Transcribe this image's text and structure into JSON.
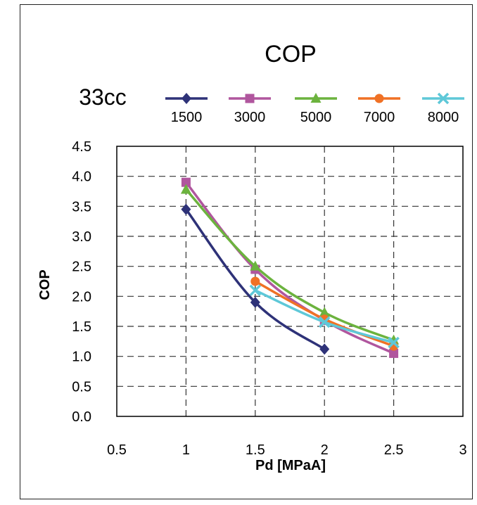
{
  "chart_data": {
    "type": "line",
    "title": "COP",
    "subtitle": "33cc",
    "xlabel": "Pd [MPaA]",
    "ylabel": "COP",
    "xlim": [
      0.5,
      3
    ],
    "ylim": [
      0,
      4.5
    ],
    "x_ticks": [
      "0.5",
      "1",
      "1.5",
      "2",
      "2.5",
      "3"
    ],
    "y_ticks": [
      "0.0",
      "0.5",
      "1.0",
      "1.5",
      "2.0",
      "2.5",
      "3.0",
      "3.5",
      "4.0",
      "4.5"
    ],
    "grid": true,
    "legend_position": "top",
    "series": [
      {
        "name": "1500",
        "color": "#2e3278",
        "marker": "diamond",
        "x": [
          1,
          1.5,
          2
        ],
        "y": [
          3.45,
          1.9,
          1.12
        ]
      },
      {
        "name": "3000",
        "color": "#b0569e",
        "marker": "square",
        "x": [
          1,
          1.5,
          2,
          2.5
        ],
        "y": [
          3.9,
          2.45,
          1.6,
          1.05
        ]
      },
      {
        "name": "5000",
        "color": "#6cb33e",
        "marker": "triangle",
        "x": [
          1,
          1.5,
          2,
          2.5
        ],
        "y": [
          3.78,
          2.5,
          1.73,
          1.27
        ]
      },
      {
        "name": "7000",
        "color": "#f07125",
        "marker": "circle",
        "x": [
          1.5,
          2,
          2.5
        ],
        "y": [
          2.25,
          1.62,
          1.17
        ]
      },
      {
        "name": "8000",
        "color": "#5ec8d8",
        "marker": "x",
        "x": [
          1.5,
          2,
          2.5
        ],
        "y": [
          2.1,
          1.57,
          1.23
        ]
      }
    ]
  }
}
